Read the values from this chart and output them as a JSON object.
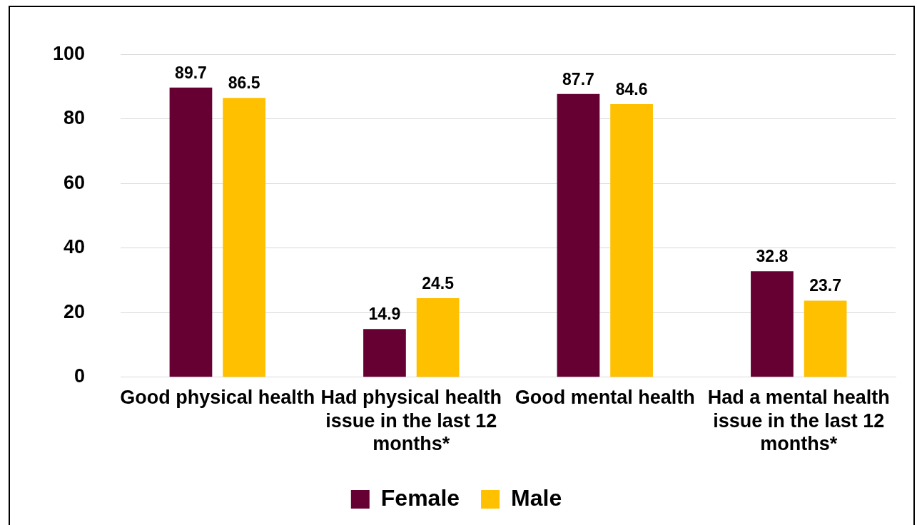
{
  "chart_data": {
    "type": "bar",
    "categories": [
      "Good physical health",
      "Had physical health issue in the last 12 months*",
      "Good mental health",
      "Had a mental health issue in the last 12 months*"
    ],
    "series": [
      {
        "name": "Female",
        "color": "#660033",
        "values": [
          89.7,
          14.9,
          87.7,
          32.8
        ]
      },
      {
        "name": "Male",
        "color": "#ffc000",
        "values": [
          86.5,
          24.5,
          84.6,
          23.7
        ]
      }
    ],
    "ylim": [
      0,
      100
    ],
    "yticks": [
      0,
      20,
      40,
      60,
      80,
      100
    ],
    "grid": "y",
    "legend": "bottom",
    "data_labels": true
  }
}
